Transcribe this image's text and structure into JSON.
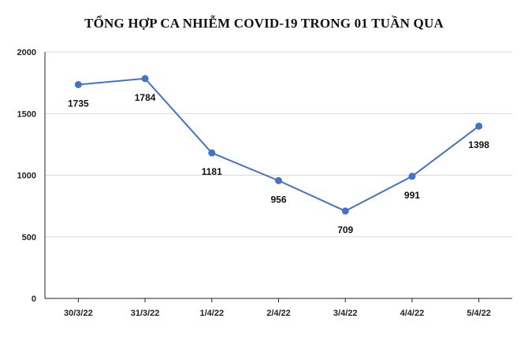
{
  "chart_data": {
    "type": "line",
    "title": "TỔNG HỢP CA NHIỄM COVID-19 TRONG 01 TUẦN QUA",
    "xlabel": "",
    "ylabel": "",
    "categories": [
      "30/3/22",
      "31/3/22",
      "1/4/22",
      "2/4/22",
      "3/4/22",
      "4/4/22",
      "5/4/22"
    ],
    "series": [
      {
        "values": [
          1735,
          1784,
          1181,
          956,
          709,
          991,
          1398
        ],
        "color": "#4472c4"
      }
    ],
    "ylim": [
      0,
      2000
    ],
    "yticks": [
      0,
      500,
      1000,
      1500,
      2000
    ],
    "grid": true,
    "legend": "none"
  }
}
